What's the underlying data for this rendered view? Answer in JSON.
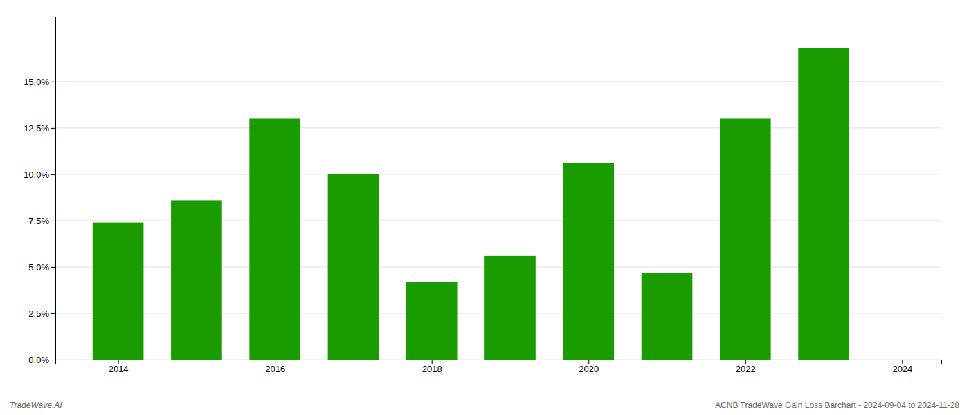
{
  "chart_data": {
    "type": "bar",
    "x": [
      2014,
      2015,
      2016,
      2017,
      2018,
      2019,
      2020,
      2021,
      2022,
      2023
    ],
    "values": [
      0.074,
      0.086,
      0.13,
      0.1,
      0.042,
      0.056,
      0.106,
      0.047,
      0.13,
      0.168
    ],
    "color": "#1a9c00",
    "xlim": [
      2013.2,
      2024.5
    ],
    "xticks": [
      2014,
      2016,
      2018,
      2020,
      2022,
      2024
    ],
    "ylim": [
      0,
      0.185
    ],
    "yticks": [
      {
        "value": 0.0,
        "label": "0.0%"
      },
      {
        "value": 0.025,
        "label": "2.5%"
      },
      {
        "value": 0.05,
        "label": "5.0%"
      },
      {
        "value": 0.075,
        "label": "7.5%"
      },
      {
        "value": 0.1,
        "label": "10.0%"
      },
      {
        "value": 0.125,
        "label": "12.5%"
      },
      {
        "value": 0.15,
        "label": "15.0%"
      }
    ],
    "grid": true,
    "annotations": [
      "TradeWave.AI",
      "ACNB TradeWave Gain Loss Barchart - 2024-09-04 to 2024-11-28"
    ]
  }
}
